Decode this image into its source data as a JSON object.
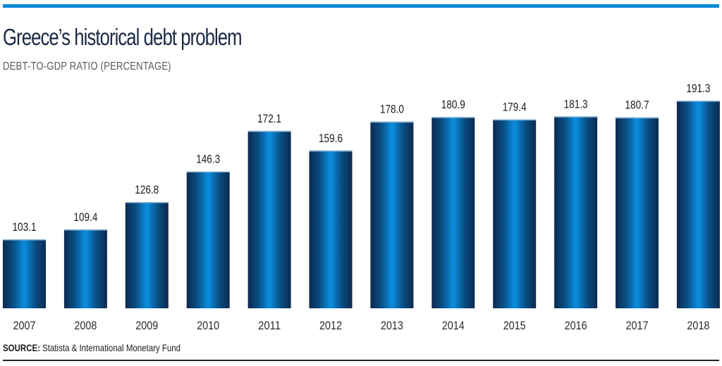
{
  "header": {
    "title": "Greece’s historical debt problem",
    "subtitle": "DEBT-TO-GDP RATIO (PERCENTAGE)"
  },
  "footer": {
    "source_label": "SOURCE:",
    "source_text": " Statista & International Monetary Fund"
  },
  "colors": {
    "accent": "#0a8ad6",
    "bar_dark": "#0b2a4e",
    "bar_light": "#0a8fe0",
    "title": "#1b2a44"
  },
  "chart_data": {
    "type": "bar",
    "title": "Greece’s historical debt problem",
    "subtitle": "DEBT-TO-GDP RATIO (PERCENTAGE)",
    "xlabel": "",
    "ylabel": "Debt-to-GDP ratio (%)",
    "categories": [
      "2007",
      "2008",
      "2009",
      "2010",
      "2011",
      "2012",
      "2013",
      "2014",
      "2015",
      "2016",
      "2017",
      "2018"
    ],
    "values": [
      103.1,
      109.4,
      126.8,
      146.3,
      172.1,
      159.6,
      178.0,
      180.9,
      179.4,
      181.3,
      180.7,
      191.3
    ],
    "value_labels": [
      "103.1",
      "109.4",
      "126.8",
      "146.3",
      "172.1",
      "159.6",
      "178.0",
      "180.9",
      "179.4",
      "181.3",
      "180.7",
      "191.3"
    ],
    "ylim": [
      59,
      195
    ],
    "grid": false,
    "legend": "none",
    "data_labels": true,
    "source": "SOURCE: Statista & International Monetary Fund"
  }
}
